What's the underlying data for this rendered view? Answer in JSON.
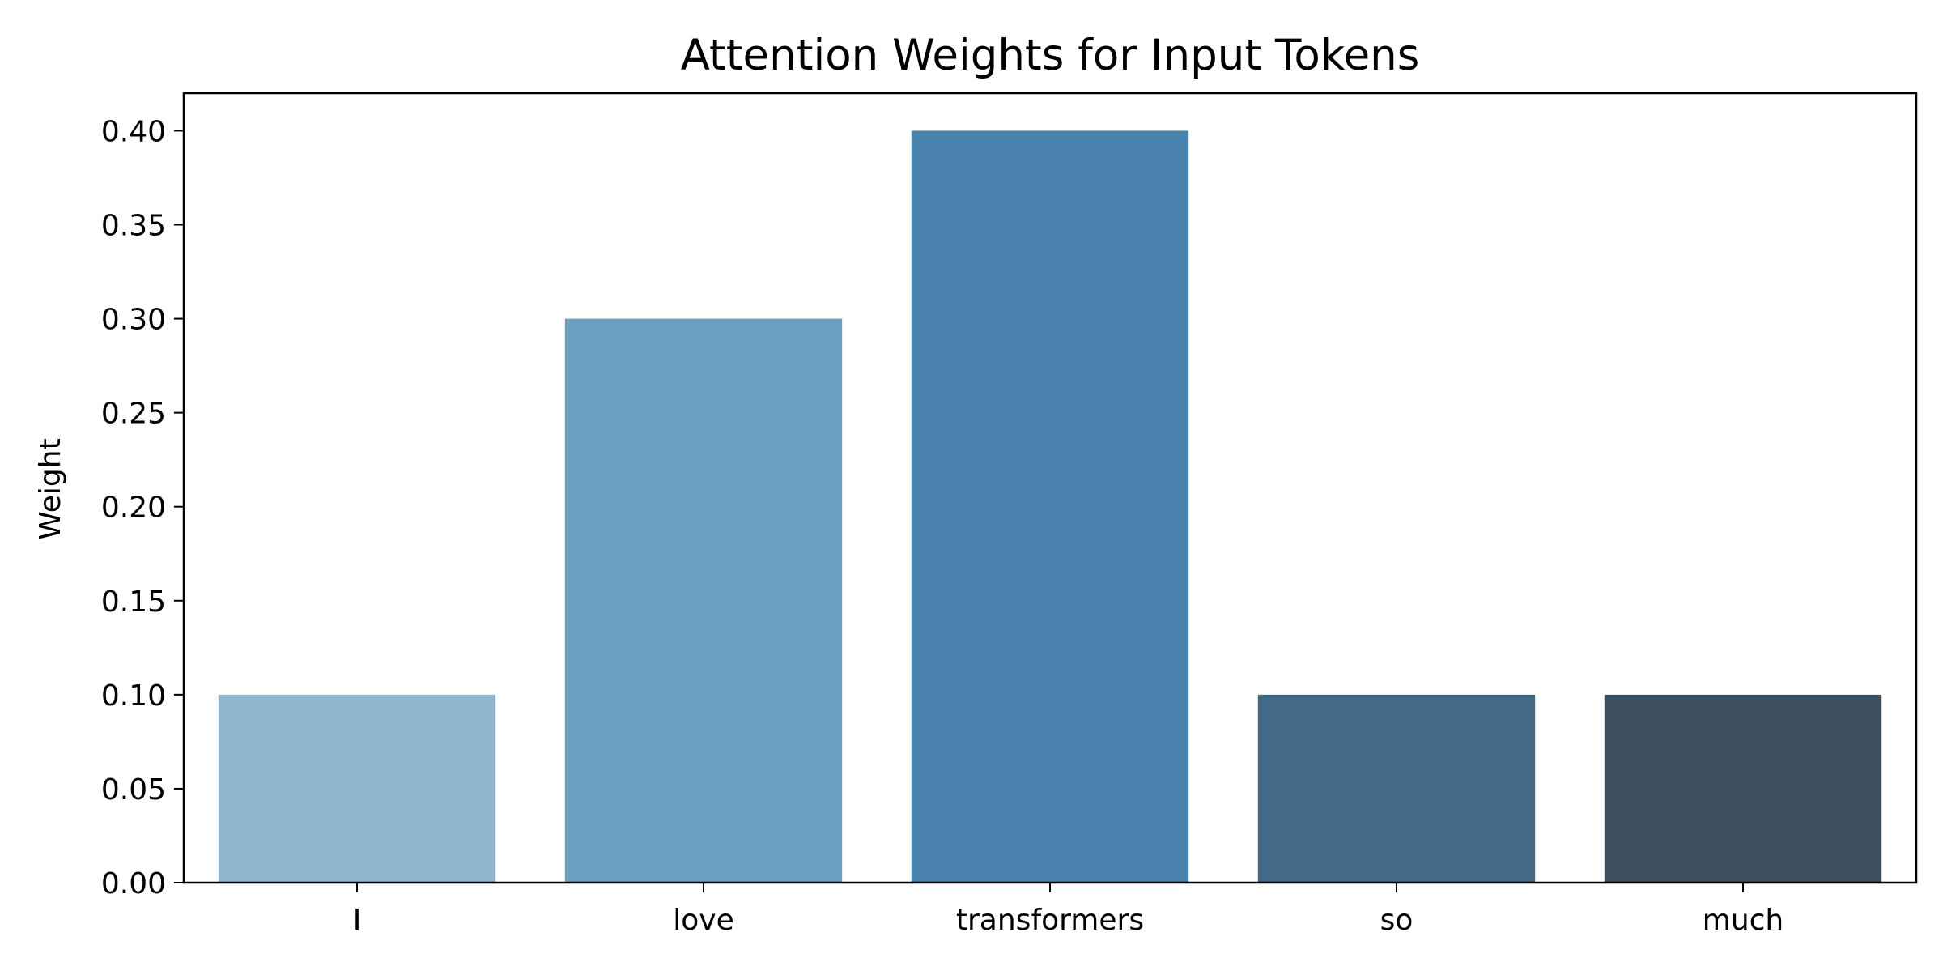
{
  "chart_data": {
    "type": "bar",
    "title": "Attention Weights for Input Tokens",
    "xlabel": "",
    "ylabel": "Weight",
    "categories": [
      "I",
      "love",
      "transformers",
      "so",
      "much"
    ],
    "values": [
      0.1,
      0.3,
      0.4,
      0.1,
      0.1
    ],
    "bar_colors": [
      "#91b4cf",
      "#6c9ec0",
      "#4983ae",
      "#426985",
      "#3c505f"
    ],
    "ylim": [
      0,
      0.42
    ],
    "yticks": [
      "0.00",
      "0.05",
      "0.10",
      "0.15",
      "0.20",
      "0.25",
      "0.30",
      "0.35",
      "0.40"
    ],
    "grid": false,
    "legend": "none"
  }
}
